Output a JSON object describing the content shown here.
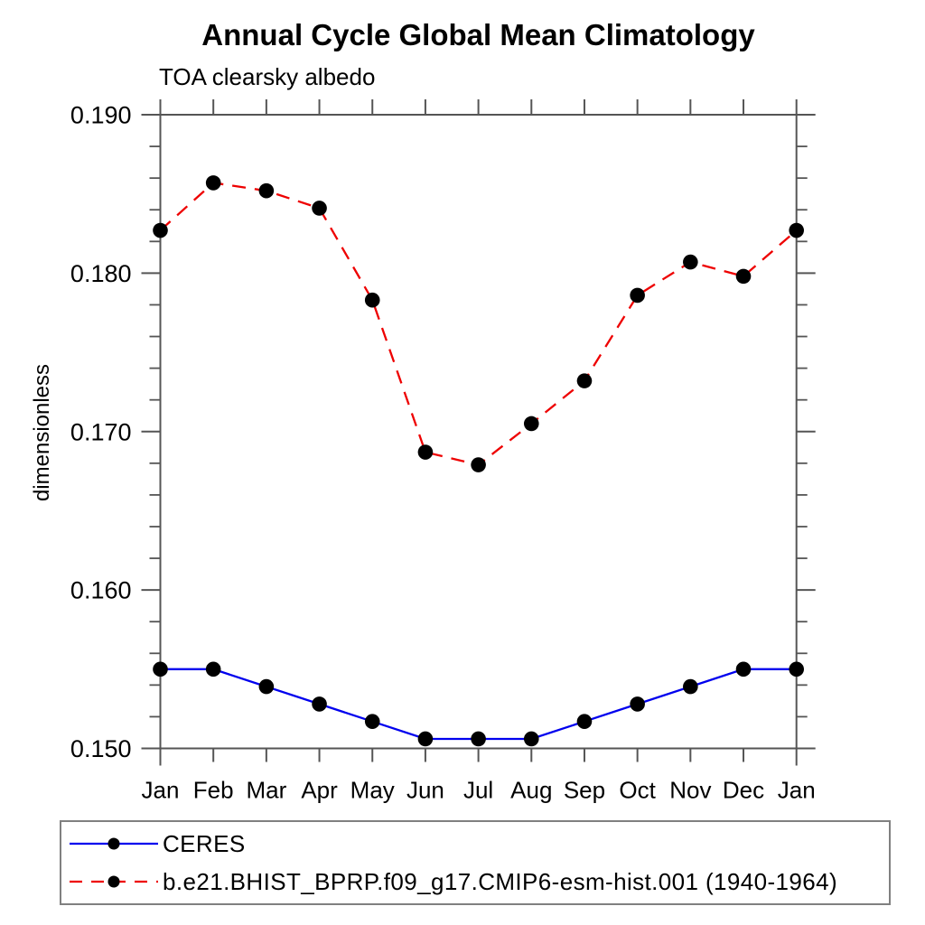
{
  "chart_data": {
    "type": "line",
    "title": "Annual Cycle Global Mean Climatology",
    "subtitle": "TOA clearsky albedo",
    "ylabel": "dimensionless",
    "xlabel": "",
    "categories": [
      "Jan",
      "Feb",
      "Mar",
      "Apr",
      "May",
      "Jun",
      "Jul",
      "Aug",
      "Sep",
      "Oct",
      "Nov",
      "Dec",
      "Jan"
    ],
    "ylim": [
      0.15,
      0.19
    ],
    "ytick_major_step": 0.01,
    "ytick_minor_step": 0.002,
    "ytick_labels": [
      "0.150",
      "0.160",
      "0.170",
      "0.180",
      "0.190"
    ],
    "grid": false,
    "legend_position": "bottom-left-box",
    "marker": "filled-circle",
    "marker_color": "#000000",
    "series": [
      {
        "name": "CERES",
        "color": "#0000ee",
        "line_style": "solid",
        "values": [
          0.155,
          0.155,
          0.1539,
          0.1528,
          0.1517,
          0.1506,
          0.1506,
          0.1506,
          0.1517,
          0.1528,
          0.1539,
          0.155,
          0.155
        ]
      },
      {
        "name": "b.e21.BHIST_BPRP.f09_g17.CMIP6-esm-hist.001 (1940-1964)",
        "color": "#ee0000",
        "line_style": "dashed",
        "values": [
          0.1827,
          0.1857,
          0.1852,
          0.1841,
          0.1783,
          0.1687,
          0.1679,
          0.1705,
          0.1732,
          0.1786,
          0.1807,
          0.1798,
          0.1827
        ]
      }
    ]
  }
}
